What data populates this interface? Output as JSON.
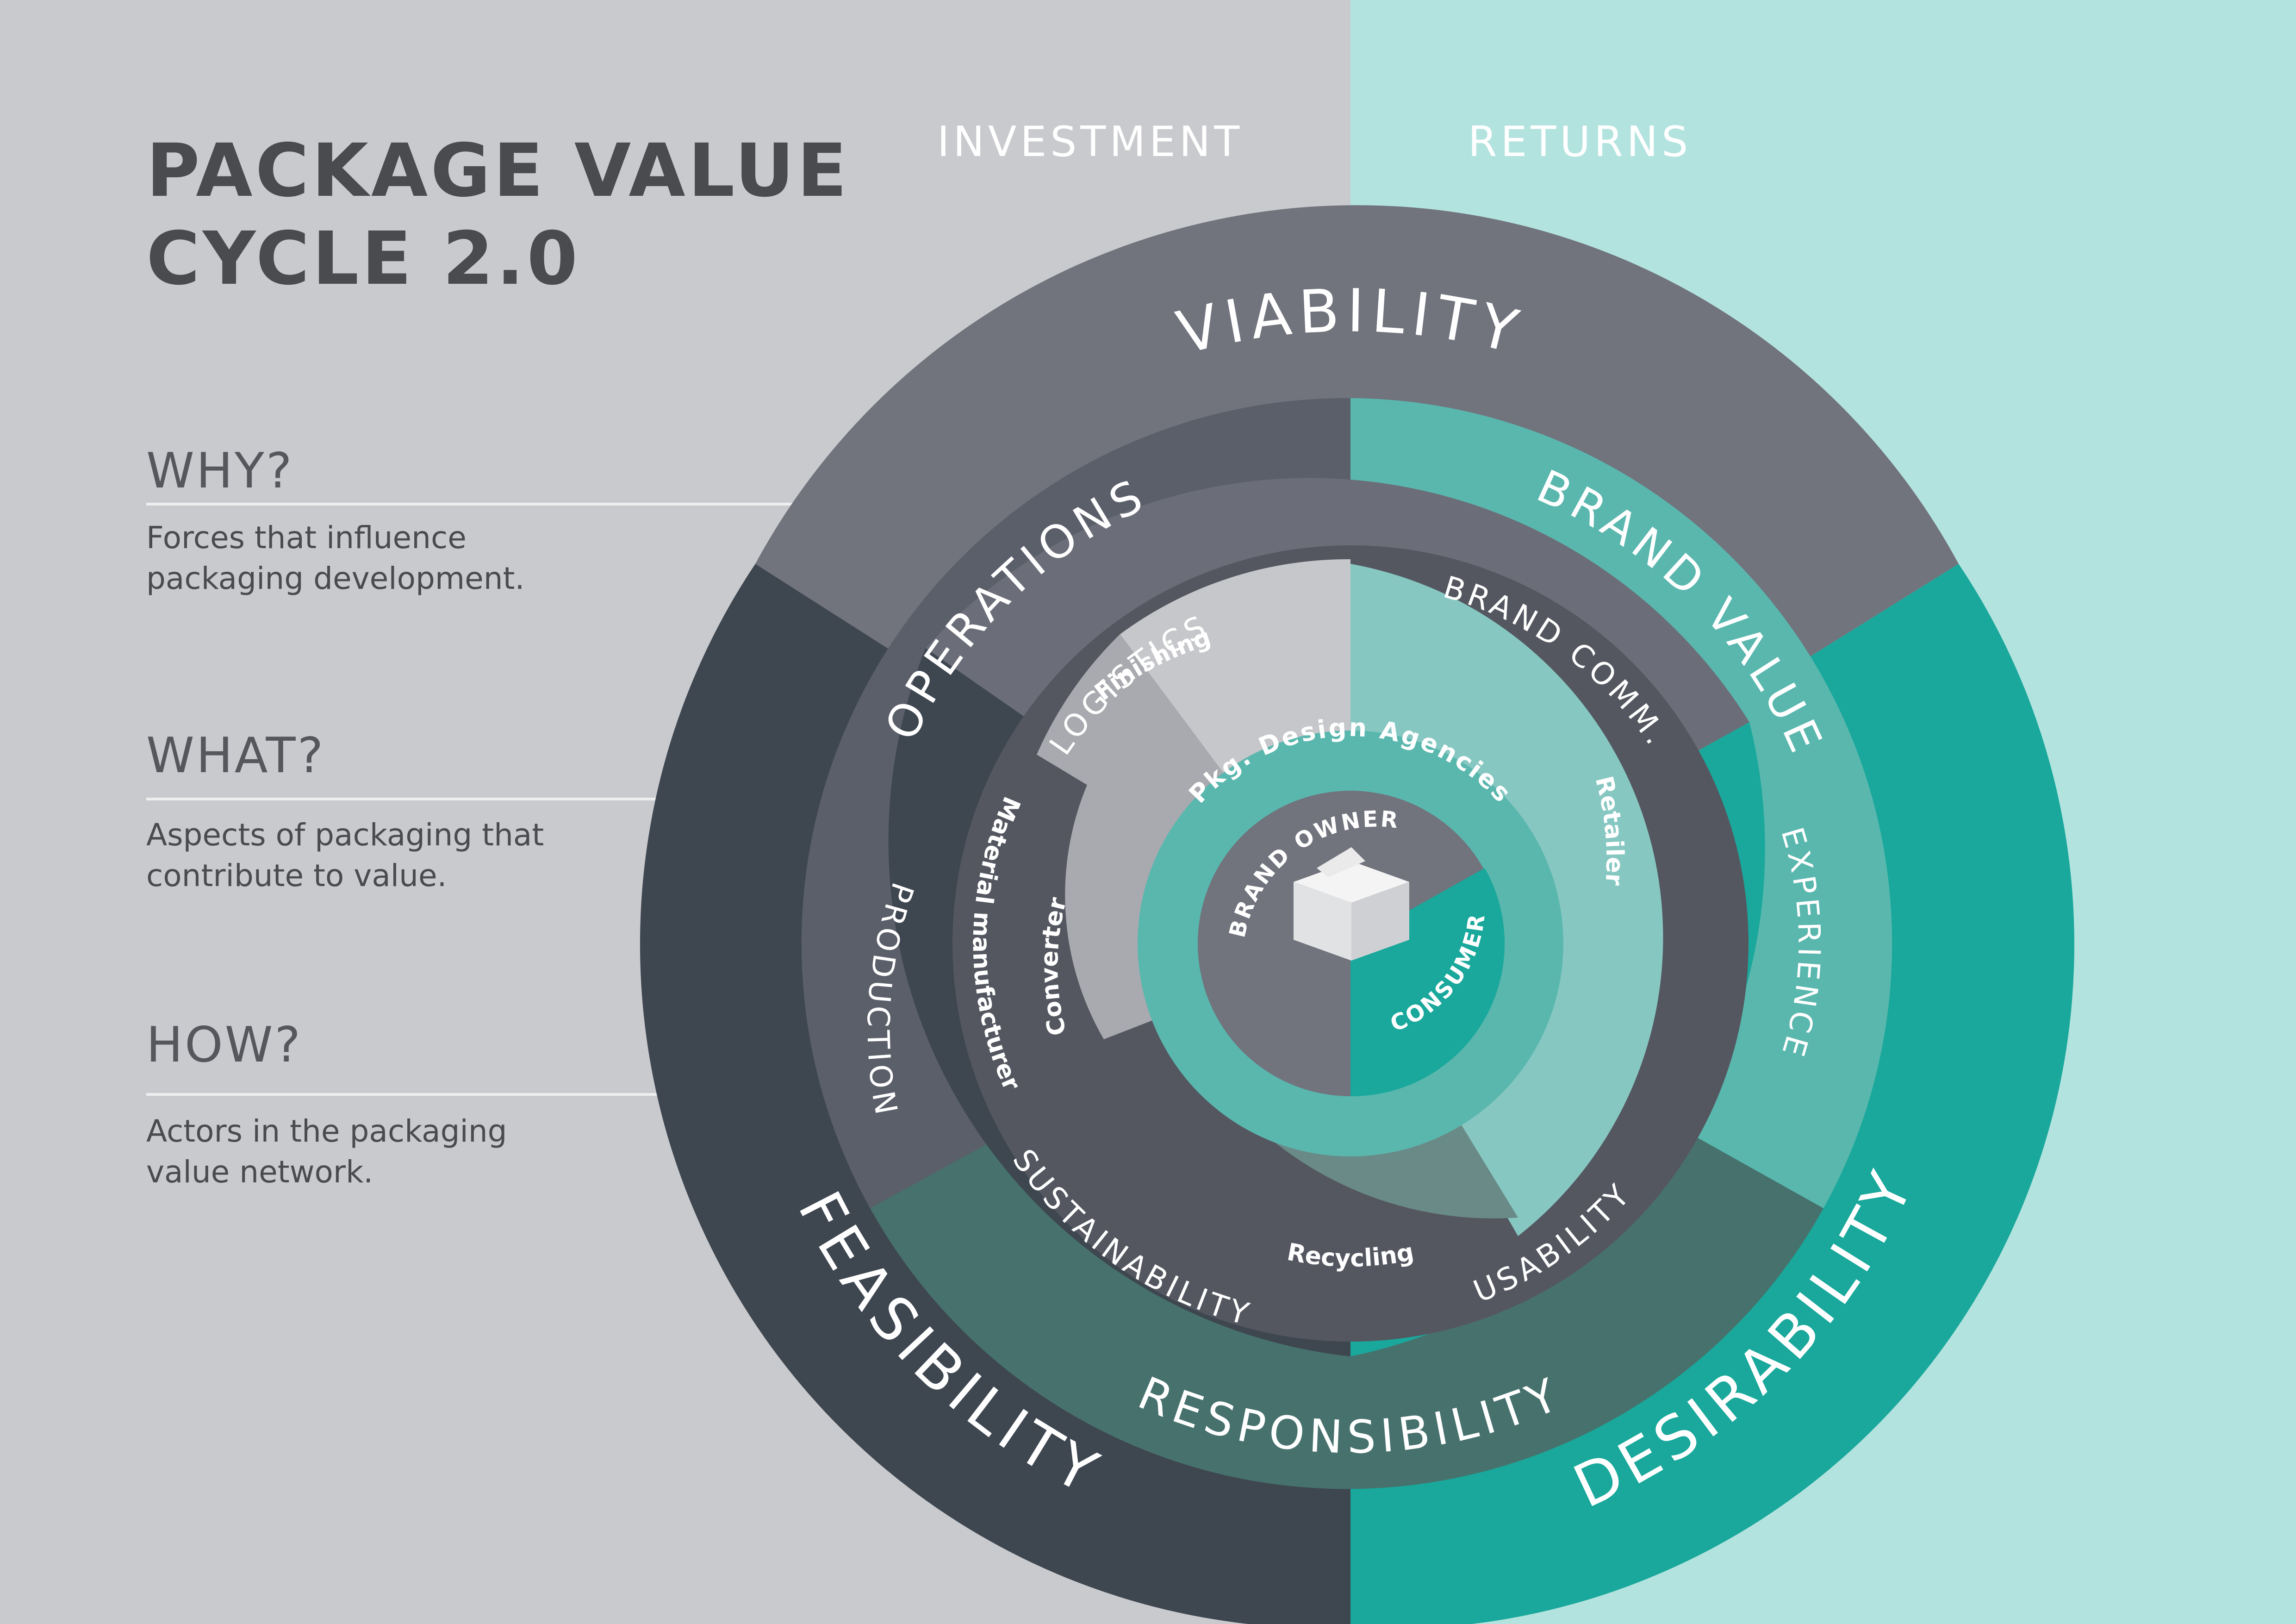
{
  "title": {
    "line1": "PACKAGE VALUE",
    "line2": "CYCLE 2.0"
  },
  "columns": {
    "investment": "INVESTMENT",
    "returns": "RETURNS"
  },
  "side": [
    {
      "heading": "WHY?",
      "line1": "Forces that influence",
      "line2": "packaging development."
    },
    {
      "heading": "WHAT?",
      "line1": "Aspects of packaging that",
      "line2": "contribute to value."
    },
    {
      "heading": "HOW?",
      "line1": "Actors in the packaging",
      "line2": "value network."
    }
  ],
  "rings": {
    "forces": [
      "VIABILITY",
      "FEASIBILITY",
      "DESIRABILITY"
    ],
    "values": [
      "OPERATIONS",
      "BRAND VALUE",
      "RESPONSIBILITY"
    ],
    "aspects": [
      "LOGISTICS",
      "BRAND COMM.",
      "PRODUCTION",
      "EXPERIENCE",
      "SUSTAINABILITY",
      "USABILITY"
    ],
    "actors": [
      "Finishing",
      "Converter",
      "Material manufacturer",
      "Retailer",
      "Recycling"
    ],
    "agencies": "Pkg. Design Agencies",
    "core": [
      "BRAND OWNER",
      "CONSUMER"
    ]
  },
  "colors": {
    "bg_left": "#c9cacd",
    "bg_right": "#b3e3df",
    "viability": "#71737d",
    "feasibility": "#3e4650",
    "desirability": "#19a89b",
    "operations": "#5b5f6a",
    "brand_value": "#5ab7ae",
    "responsibility": "#47716d",
    "logistics_band": "#6b6e78",
    "production_band": "#3e4650",
    "experience_band": "#19a89b",
    "actors_grey": "#a9aaaf",
    "actors_light": "#c6c7ca",
    "actors_dark": "#545760",
    "retailer": "#87c7c2",
    "recycling": "#698a86",
    "agencies": "#5ab7ae",
    "brand_owner": "#71737d",
    "consumer": "#19a89b"
  }
}
